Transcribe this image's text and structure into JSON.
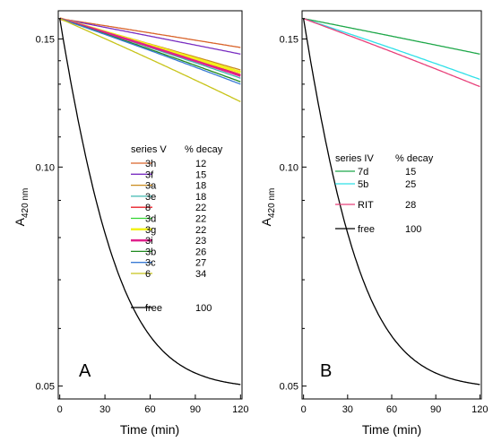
{
  "chart_data": [
    {
      "type": "line",
      "panel_label": "A",
      "xlabel": "Time (min)",
      "ylabel": "A",
      "ylabel_sub": "420 nm",
      "xlim": [
        -1,
        121
      ],
      "ylim": [
        0.048,
        0.164
      ],
      "yscale": "log",
      "xticks": [
        0,
        30,
        60,
        90,
        120
      ],
      "yticks": [
        0.05,
        0.1,
        0.15
      ],
      "ytick_labels": [
        "0.05",
        "0.10",
        "0.15"
      ],
      "legend_title": "series V",
      "legend_value_title": "% decay",
      "legend_position": "center-right",
      "series": [
        {
          "name": "3h",
          "value": "12",
          "color": "#d9642b",
          "final": 0.146,
          "width": 1.3
        },
        {
          "name": "3f",
          "value": "15",
          "color": "#7a2fc2",
          "final": 0.143,
          "width": 1.3
        },
        {
          "name": "3a",
          "value": "18",
          "color": "#c98a1c",
          "final": 0.136,
          "width": 1.3
        },
        {
          "name": "3e",
          "value": "18",
          "color": "#3fb8b0",
          "final": 0.1325,
          "width": 1.3
        },
        {
          "name": "8",
          "value": "22",
          "color": "#e8202a",
          "final": 0.134,
          "width": 1.3
        },
        {
          "name": "3d",
          "value": "22",
          "color": "#33d433",
          "final": 0.135,
          "width": 1.3
        },
        {
          "name": "3g",
          "value": "22",
          "color": "#f2f21a",
          "final": 0.135,
          "width": 3
        },
        {
          "name": "3i",
          "value": "23",
          "color": "#e0208c",
          "final": 0.1335,
          "width": 2.5
        },
        {
          "name": "3b",
          "value": "26",
          "color": "#1f8a1f",
          "final": 0.131,
          "width": 1.3
        },
        {
          "name": "3c",
          "value": "27",
          "color": "#3a7bd5",
          "final": 0.13,
          "width": 1.3
        },
        {
          "name": "6",
          "value": "34",
          "color": "#c8c41a",
          "final": 0.123,
          "width": 1.3
        },
        {
          "name": "free",
          "value": "100",
          "color": "#000000",
          "final": 0.0495,
          "width": 1.3,
          "free": true
        }
      ]
    },
    {
      "type": "line",
      "panel_label": "B",
      "xlabel": "Time (min)",
      "ylabel": "A",
      "ylabel_sub": "420 nm",
      "xlim": [
        -1,
        121
      ],
      "ylim": [
        0.048,
        0.164
      ],
      "yscale": "log",
      "xticks": [
        0,
        30,
        60,
        90,
        120
      ],
      "yticks": [
        0.05,
        0.1,
        0.15
      ],
      "ytick_labels": [
        "0.05",
        "0.10",
        "0.15"
      ],
      "legend_title": "series IV",
      "legend_value_title": "% decay",
      "legend_position": "center",
      "series": [
        {
          "name": "7d",
          "value": "15",
          "color": "#1fa84a",
          "final": 0.143,
          "width": 1.3
        },
        {
          "name": "5b",
          "value": "25",
          "color": "#2ee0e8",
          "final": 0.132,
          "width": 1.3
        },
        {
          "name": "RIT",
          "value": "28",
          "color": "#e8407a",
          "final": 0.129,
          "width": 1.3
        },
        {
          "name": "free",
          "value": "100",
          "color": "#000000",
          "final": 0.0495,
          "width": 1.3,
          "free": true
        }
      ]
    }
  ]
}
